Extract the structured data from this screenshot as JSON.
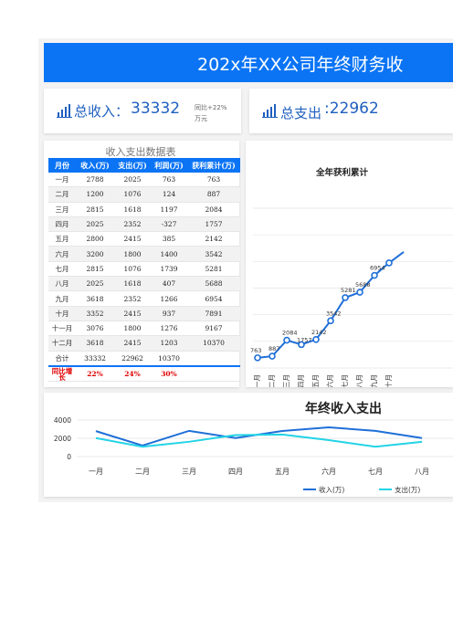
{
  "header": {
    "title": "202x年XX公司年终财务收"
  },
  "kpis": {
    "income": {
      "label": "总收入：",
      "value": "33332",
      "note_line1": "同比+22%",
      "note_line2": "万元"
    },
    "expense": {
      "label": "总支出",
      "value": ":22962"
    }
  },
  "table": {
    "title": "收入支出数据表",
    "headers": [
      "月份",
      "收入(万)",
      "支出(万)",
      "利润(万)",
      "获利累计(万)"
    ],
    "rows": [
      [
        "一月",
        "2788",
        "2025",
        "763",
        "763"
      ],
      [
        "二月",
        "1200",
        "1076",
        "124",
        "887"
      ],
      [
        "三月",
        "2815",
        "1618",
        "1197",
        "2084"
      ],
      [
        "四月",
        "2025",
        "2352",
        "-327",
        "1757"
      ],
      [
        "五月",
        "2800",
        "2415",
        "385",
        "2142"
      ],
      [
        "六月",
        "3200",
        "1800",
        "1400",
        "3542"
      ],
      [
        "七月",
        "2815",
        "1076",
        "1739",
        "5281"
      ],
      [
        "八月",
        "2025",
        "1618",
        "407",
        "5688"
      ],
      [
        "九月",
        "3618",
        "2352",
        "1266",
        "6954"
      ],
      [
        "十月",
        "3352",
        "2415",
        "937",
        "7891"
      ],
      [
        "十一月",
        "3076",
        "1800",
        "1276",
        "9167"
      ],
      [
        "十二月",
        "3618",
        "2415",
        "1203",
        "10370"
      ]
    ],
    "total": [
      "合计",
      "33332",
      "22962",
      "10370",
      ""
    ],
    "yoy": [
      "同比增长",
      "22%",
      "24%",
      "30%",
      ""
    ]
  },
  "chart_data": [
    {
      "type": "line",
      "title": "全年获利累计",
      "categories": [
        "一月",
        "二月",
        "三月",
        "四月",
        "五月",
        "六月",
        "七月",
        "八月",
        "九月",
        "十月"
      ],
      "values": [
        763,
        887,
        2084,
        1757,
        2142,
        3542,
        5281,
        5688,
        6954,
        7891
      ],
      "data_labels": [
        "763",
        "887",
        "2084",
        "1757",
        "2142",
        "3542",
        "5281",
        "5688",
        "6954",
        ""
      ],
      "ylim": [
        0,
        12000
      ],
      "grid": true,
      "colors": {
        "line": "#1f6fd8",
        "marker_fill": "#ffffff"
      }
    },
    {
      "type": "line",
      "title": "年终收入支出",
      "categories": [
        "一月",
        "二月",
        "三月",
        "四月",
        "五月",
        "六月",
        "七月",
        "八月"
      ],
      "yticks": [
        "4000",
        "2000",
        "0"
      ],
      "ylim": [
        0,
        4000
      ],
      "series": [
        {
          "name": "收入(万)",
          "values": [
            2788,
            1200,
            2815,
            2025,
            2800,
            3200,
            2815,
            2025
          ],
          "color": "#1f6fd8"
        },
        {
          "name": "支出(万)",
          "values": [
            2025,
            1076,
            1618,
            2352,
            2415,
            1800,
            1076,
            1618
          ],
          "color": "#22d3e6"
        }
      ],
      "legend_position": "bottom",
      "grid": true
    }
  ]
}
